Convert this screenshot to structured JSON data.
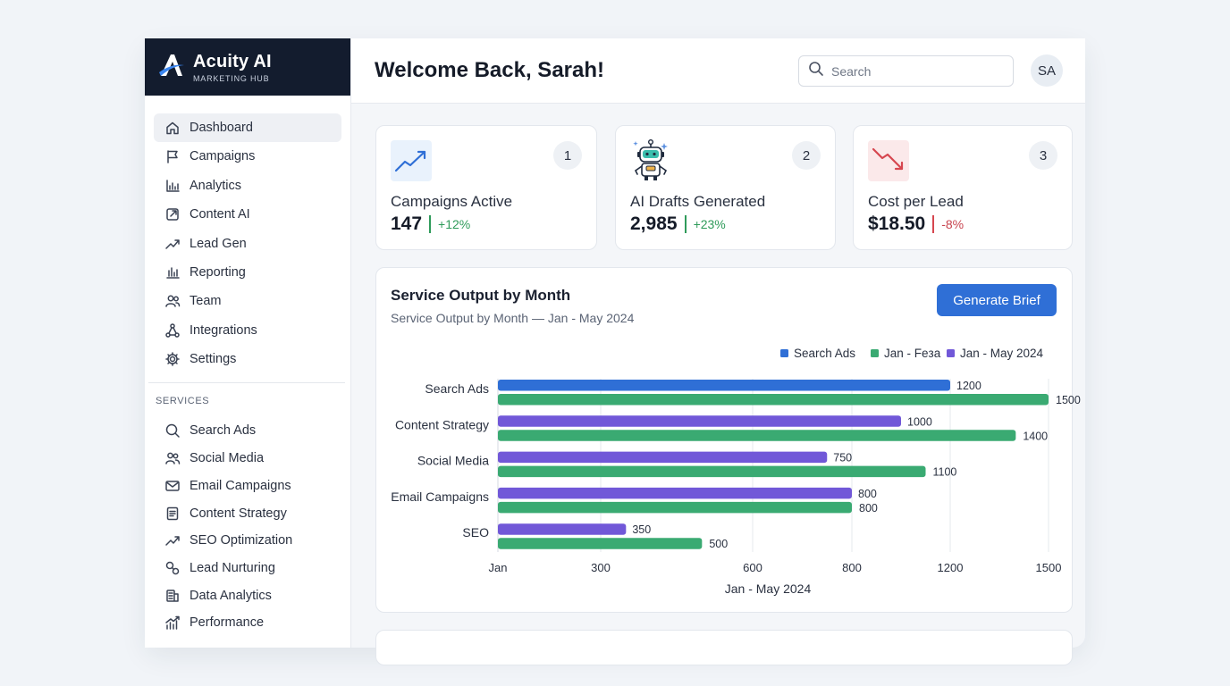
{
  "brand": {
    "name": "Acuity AI",
    "subtitle": "MARKETING HUB"
  },
  "nav": [
    {
      "label": "Dashboard",
      "icon": "home-icon",
      "active": true
    },
    {
      "label": "Campaigns",
      "icon": "flag-icon"
    },
    {
      "label": "Analytics",
      "icon": "bar-chart-icon"
    },
    {
      "label": "Content AI",
      "icon": "external-edit-icon"
    },
    {
      "label": "Lead Gen",
      "icon": "trend-icon"
    },
    {
      "label": "Reporting",
      "icon": "report-icon"
    },
    {
      "label": "Team",
      "icon": "team-icon"
    },
    {
      "label": "Integrations",
      "icon": "integrations-icon"
    },
    {
      "label": "Settings",
      "icon": "gear-icon"
    }
  ],
  "services_label": "SERVICES",
  "services": [
    {
      "label": "Search Ads",
      "icon": "search-icon"
    },
    {
      "label": "Social Media",
      "icon": "people-icon"
    },
    {
      "label": "Email Campaigns",
      "icon": "mail-icon"
    },
    {
      "label": "Content Strategy",
      "icon": "document-icon"
    },
    {
      "label": "SEO Optimization",
      "icon": "trend-icon"
    },
    {
      "label": "Lead Nurturing",
      "icon": "nurture-icon"
    },
    {
      "label": "Data Analytics",
      "icon": "data-icon"
    },
    {
      "label": "Performance",
      "icon": "performance-icon"
    }
  ],
  "header": {
    "welcome": "Welcome Back, Sarah!",
    "search_placeholder": "Search",
    "avatar_initials": "SA"
  },
  "stats": [
    {
      "badge": "1",
      "label": "Campaigns Active",
      "value": "147",
      "delta": "+12%",
      "trend": "up",
      "icon": "trend-up-icon",
      "accent": "#2f9b5a"
    },
    {
      "badge": "2",
      "label": "AI Drafts Generated",
      "value": "2,985",
      "delta": "+23%",
      "trend": "up",
      "icon": "robot-icon",
      "accent": "#2f9b5a"
    },
    {
      "badge": "3",
      "label": "Cost per Lead",
      "value": "$18.50",
      "delta": "-8%",
      "trend": "down",
      "icon": "trend-down-icon",
      "accent": "#c8444f"
    }
  ],
  "chart_card": {
    "title": "Service Output by Month",
    "subtitle": "Service Output by Month — Jan - May 2024",
    "button": "Generate Brief"
  },
  "chart_data": {
    "type": "bar",
    "orientation": "horizontal",
    "title": "Service Output by Month",
    "xlabel": "Jan - May 2024",
    "categories": [
      "Search Ads",
      "Content Strategy",
      "Social Media",
      "Email Campaigns",
      "SEO"
    ],
    "legend": [
      {
        "name": "Search Ads",
        "color": "#2f6fd6"
      },
      {
        "name": "Jan - Feзa",
        "color": "#3aaa72"
      },
      {
        "name": "Jan - May 2024",
        "color": "#7158d8"
      }
    ],
    "legend_position": "top-right",
    "bars": [
      {
        "category": "Search Ads",
        "top": {
          "value": 1200,
          "color": "#2f6fd6"
        },
        "bottom": {
          "value": 1500,
          "color": "#3aaa72"
        }
      },
      {
        "category": "Content Strategy",
        "top": {
          "value": 1000,
          "color": "#7158d8"
        },
        "bottom": {
          "value": 1400,
          "color": "#3aaa72"
        }
      },
      {
        "category": "Social Media",
        "top": {
          "value": 750,
          "color": "#7158d8"
        },
        "bottom": {
          "value": 1100,
          "color": "#3aaa72"
        }
      },
      {
        "category": "Email Campaigns",
        "top": {
          "value": 800,
          "color": "#7158d8"
        },
        "bottom": {
          "value": 800,
          "color": "#3aaa72"
        }
      },
      {
        "category": "SEO",
        "top": {
          "value": 350,
          "color": "#7158d8"
        },
        "bottom": {
          "value": 500,
          "color": "#3aaa72"
        }
      }
    ],
    "x_ticks": [
      {
        "label": "Jan",
        "value": 0
      },
      {
        "label": "300",
        "value": 300
      },
      {
        "label": "600",
        "value": 600
      },
      {
        "label": "800",
        "value": 800
      },
      {
        "label": "1200",
        "value": 1200
      },
      {
        "label": "1500",
        "value": 1500
      }
    ],
    "grid": true
  }
}
